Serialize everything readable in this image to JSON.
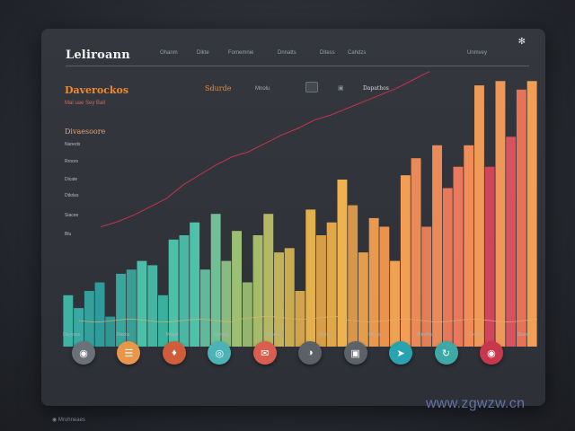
{
  "header": {
    "brand": "Leliroann",
    "nav": [
      "Ohanm",
      "Dlkte",
      "Fomemnie",
      "Dnnatts",
      "Ditess",
      "Cahdzs",
      "Unmvey"
    ],
    "nav_left": [
      178,
      219,
      254,
      309,
      356,
      387,
      520
    ]
  },
  "summary": {
    "title": "Daverockos",
    "subtitle": "Mal uae Sey Ball",
    "mid_label": "Sdurde",
    "mid_label2": "Mnolu",
    "mid_label3": "Dapathos"
  },
  "sidebar": {
    "heading": "Divaesoore",
    "items": [
      "Naneds",
      "Rroors",
      "Dicate",
      "Dtkrles",
      "Siacee",
      "Blu"
    ]
  },
  "axis_labels": [
    "Dayyxes",
    "Fleebs",
    "Mraye",
    "Derase",
    "Meneser",
    "Damas",
    "Dilyes",
    "Dlmdhs",
    "Deeva",
    "Sleme"
  ],
  "chart_data": {
    "type": "bar",
    "values": [
      12,
      9,
      13,
      15,
      7,
      17,
      18,
      20,
      19,
      12,
      25,
      26,
      29,
      18,
      31,
      20,
      27,
      15,
      26,
      31,
      22,
      23,
      13,
      32,
      26,
      29,
      39,
      33,
      22,
      30,
      28,
      20,
      40,
      44,
      28,
      47,
      37,
      42,
      47,
      61,
      42,
      62,
      49,
      60,
      62
    ],
    "colors": [
      "#3eb3a3",
      "#3aa9a3",
      "#35a09b",
      "#2e9c9a",
      "#2f9694",
      "#39a69c",
      "#3a9e97",
      "#4bbfa7",
      "#47b3a1",
      "#3bb09c",
      "#4cc0a8",
      "#4ab6a3",
      "#4ec2a8",
      "#62b99a",
      "#71bf94",
      "#8aba82",
      "#9bbf74",
      "#93b56f",
      "#a5bb69",
      "#b4b862",
      "#c4b259",
      "#c9ab50",
      "#d0a44e",
      "#e2b14d",
      "#d79e49",
      "#e0a64a",
      "#eeb34e",
      "#d8964a",
      "#e39d4b",
      "#e9994d",
      "#e9934e",
      "#f0a253",
      "#f39e56",
      "#ea8a57",
      "#e17f56",
      "#ea8a58",
      "#e5795a",
      "#ea785c",
      "#ef8c5a",
      "#ee9a58",
      "#d0455e",
      "#ef9758",
      "#d8535f",
      "#e47358",
      "#f1a053"
    ],
    "line": [
      0.05,
      0.08,
      0.12,
      0.17,
      0.22,
      0.3,
      0.36,
      0.42,
      0.47,
      0.5,
      0.55,
      0.6,
      0.64,
      0.69,
      0.72,
      0.76,
      0.8,
      0.84,
      0.88,
      0.93,
      0.98
    ],
    "ylim": [
      0,
      65
    ]
  }
}
